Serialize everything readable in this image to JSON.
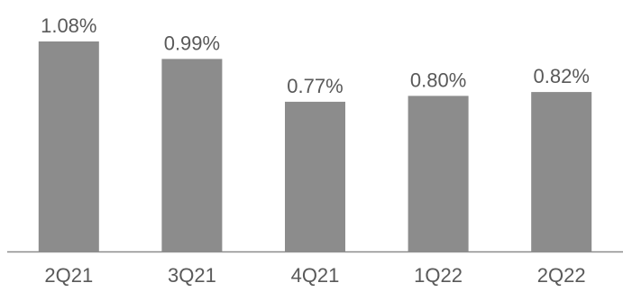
{
  "chart_data": {
    "type": "bar",
    "categories": [
      "2Q21",
      "3Q21",
      "4Q21",
      "1Q22",
      "2Q22"
    ],
    "values": [
      1.08,
      0.99,
      0.77,
      0.8,
      0.82
    ],
    "value_labels": [
      "1.08%",
      "0.99%",
      "0.77%",
      "0.80%",
      "0.82%"
    ],
    "title": "",
    "xlabel": "",
    "ylabel": "",
    "ylim": [
      0,
      1.08
    ],
    "grid": false,
    "legend": "none",
    "colors": {
      "bar": "#8c8c8c",
      "axis": "#8c8c8c",
      "text": "#595959"
    }
  }
}
